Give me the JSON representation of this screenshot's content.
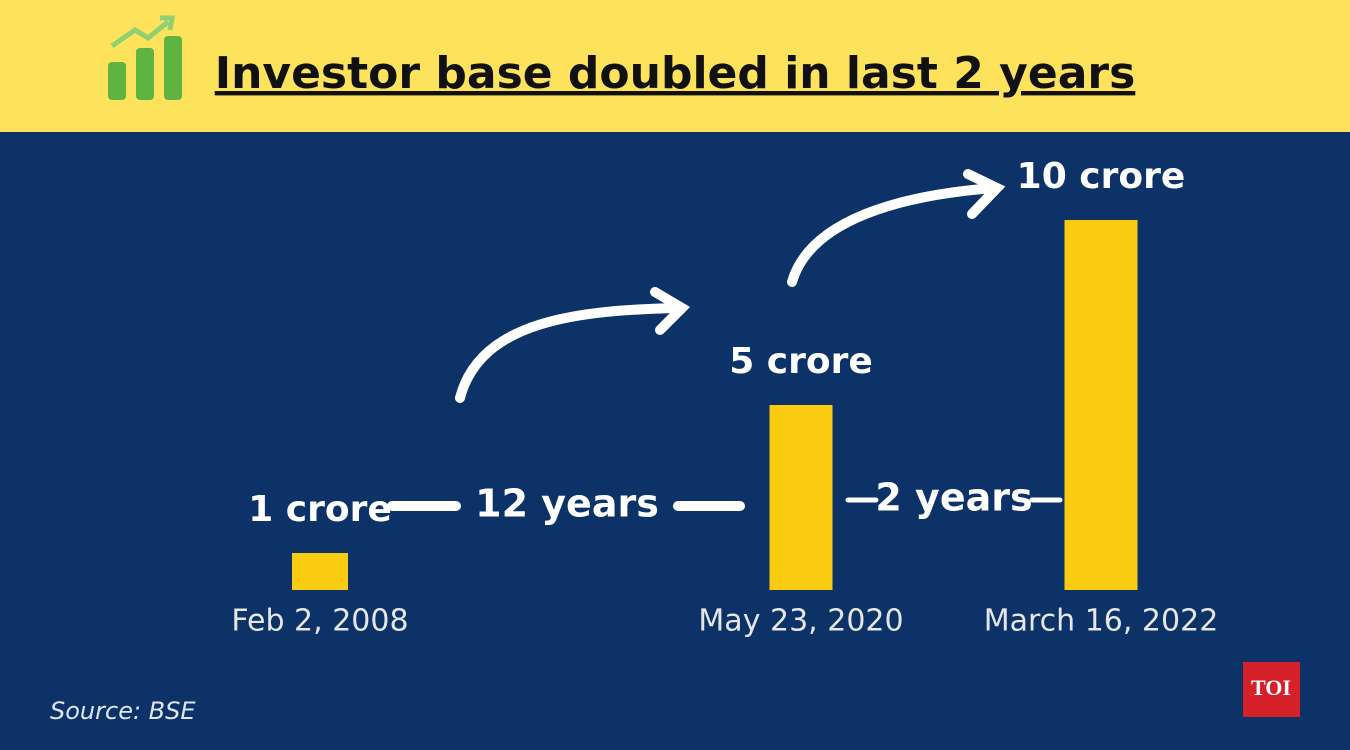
{
  "chart_data": {
    "type": "bar",
    "title": "Investor base doubled in last 2 years",
    "categories": [
      "Feb 2, 2008",
      "May 23, 2020",
      "March 16, 2022"
    ],
    "values": [
      1,
      5,
      10
    ],
    "value_labels": [
      "1 crore",
      "5 crore",
      "10 crore"
    ],
    "color": "#f9cc12",
    "annotations": [
      "12 years",
      "2 years"
    ],
    "source": "Source: BSE"
  },
  "logo": "TOI"
}
